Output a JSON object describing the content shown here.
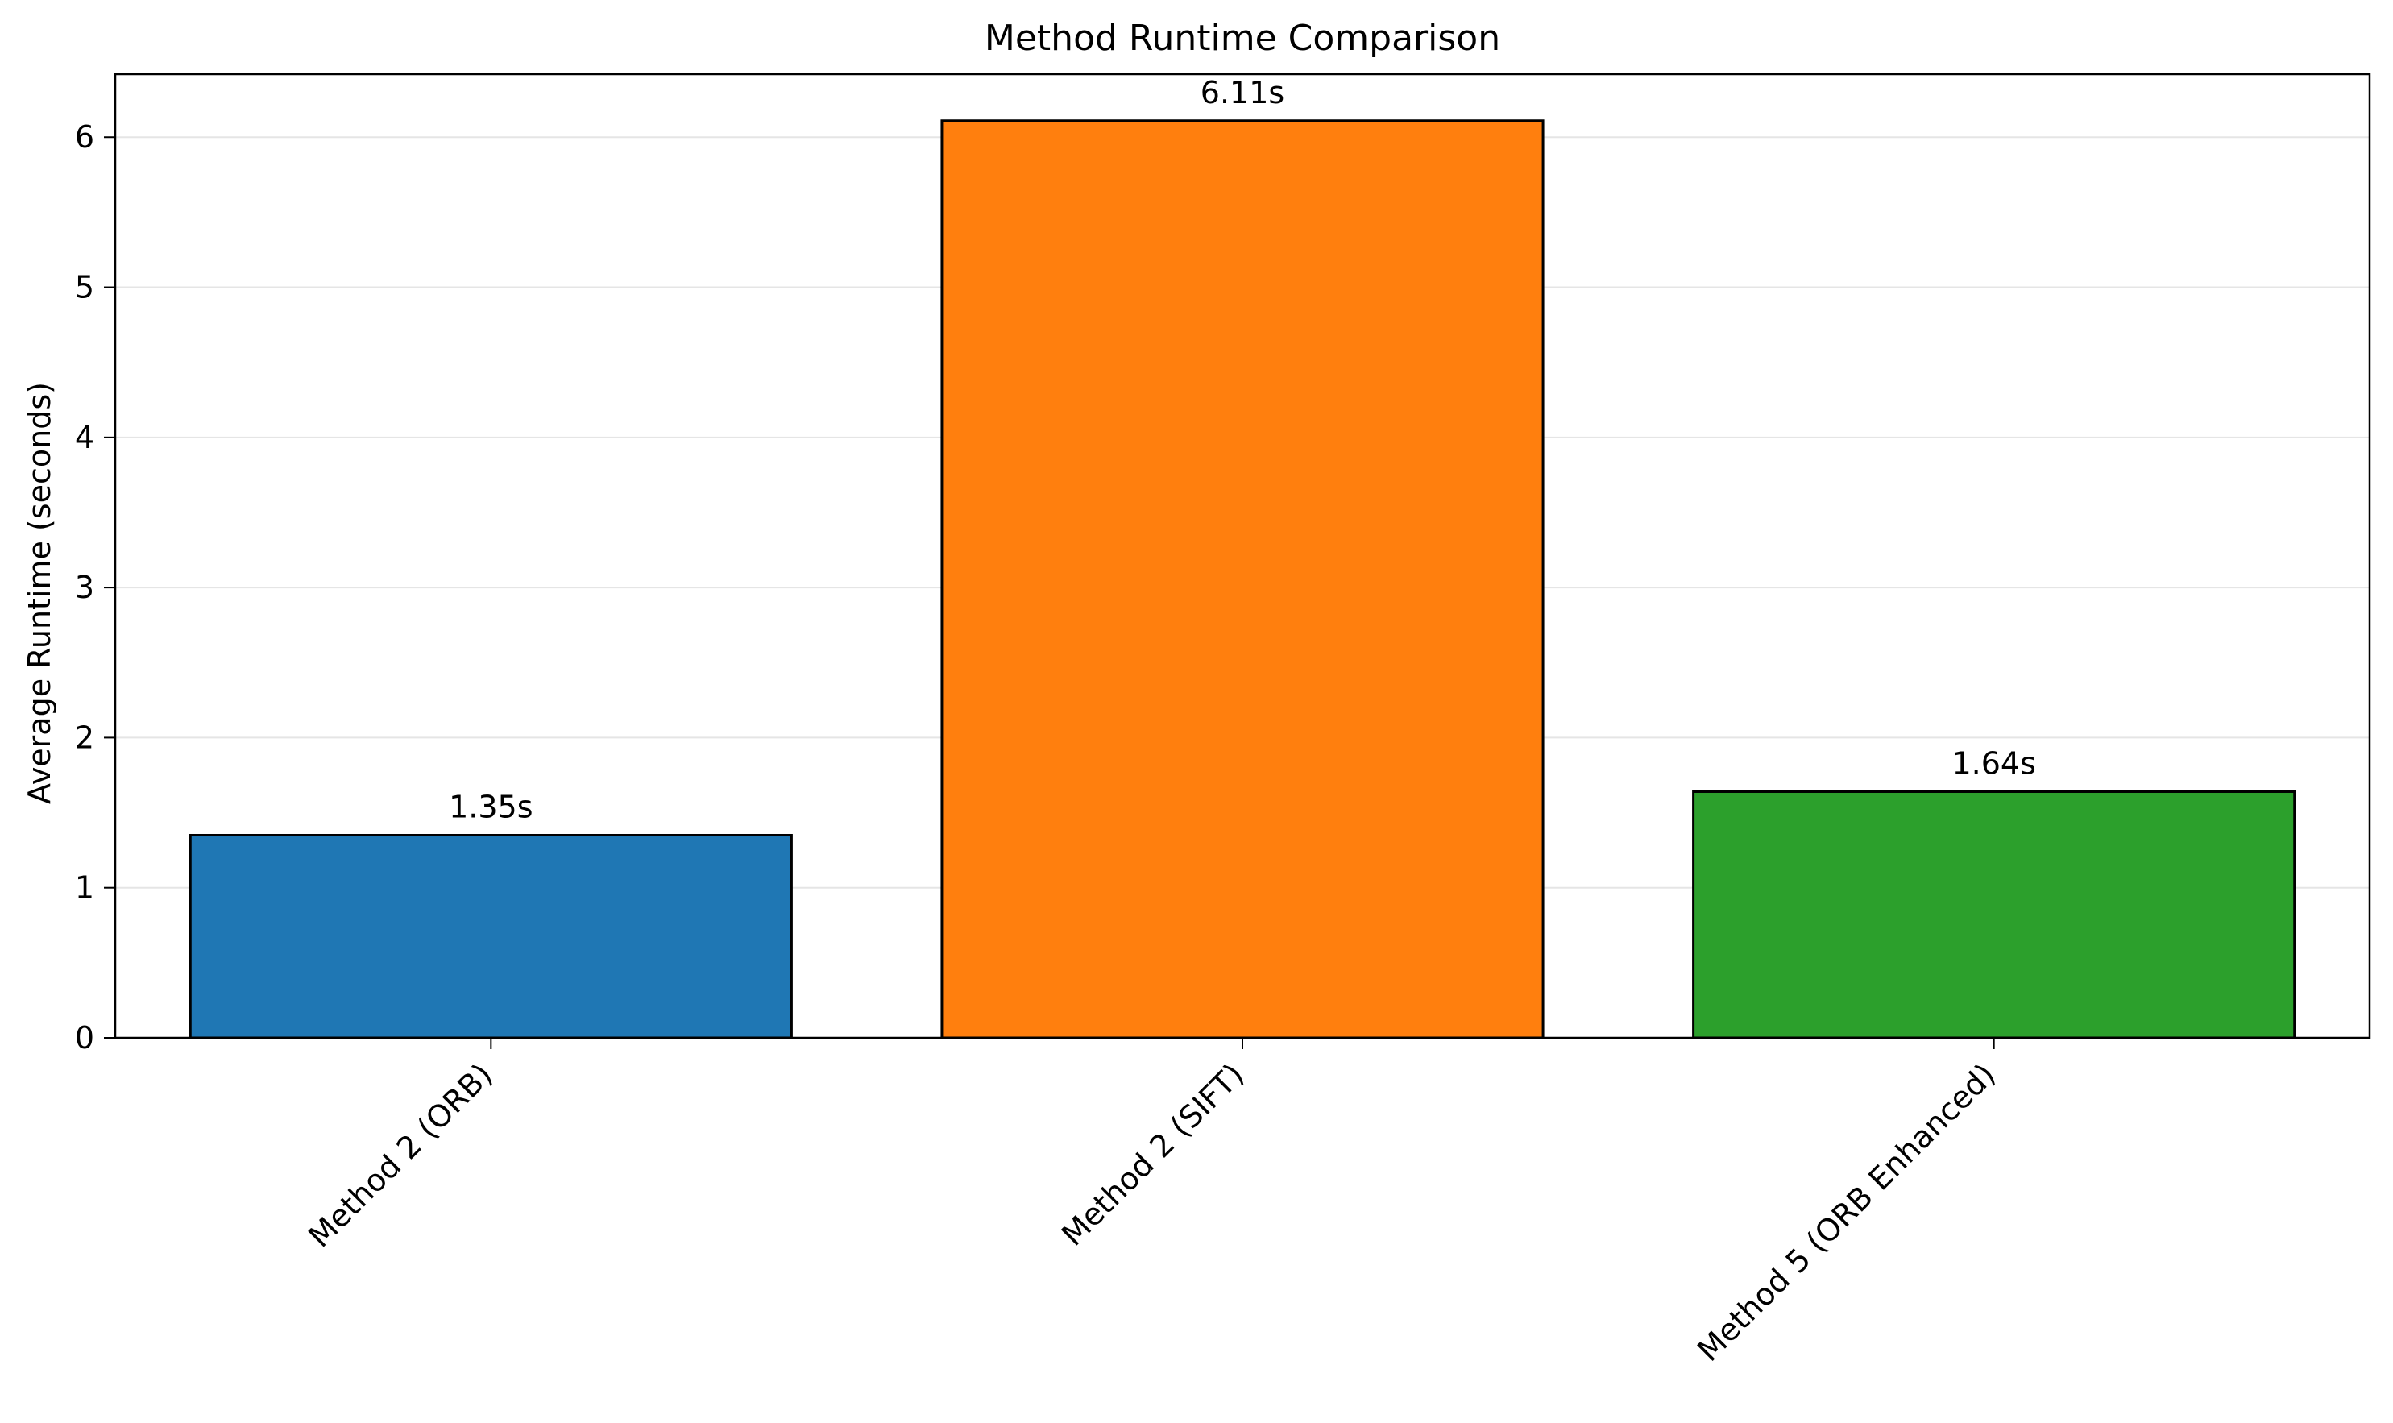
{
  "chart_data": {
    "type": "bar",
    "title": "Method Runtime Comparison",
    "xlabel": "",
    "ylabel": "Average Runtime (seconds)",
    "categories": [
      "Method 2 (ORB)",
      "Method 2 (SIFT)",
      "Method 5 (ORB Enhanced)"
    ],
    "values": [
      1.35,
      6.11,
      1.64
    ],
    "value_labels": [
      "1.35s",
      "6.11s",
      "1.64s"
    ],
    "colors": [
      "#1f77b4",
      "#ff7f0e",
      "#2ca02c"
    ],
    "ylim": [
      0,
      6.42
    ],
    "yticks": [
      0,
      1,
      2,
      3,
      4,
      5,
      6
    ],
    "ytick_labels": [
      "0",
      "1",
      "2",
      "3",
      "4",
      "5",
      "6"
    ],
    "grid": "y-axis",
    "legend": "none"
  }
}
